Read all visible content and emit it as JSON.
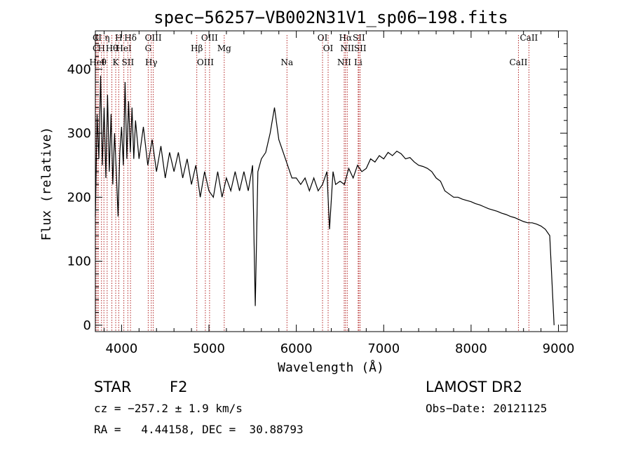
{
  "chart_data": {
    "type": "line",
    "title": "spec−56257−VB002N31V1_sp06−198.fits",
    "xlabel": "Wavelength (Å)",
    "ylabel": "Flux (relative)",
    "xlim": [
      3700,
      9100
    ],
    "ylim": [
      -10,
      460
    ],
    "xticks": [
      4000,
      5000,
      6000,
      7000,
      8000,
      9000
    ],
    "yticks": [
      0,
      100,
      200,
      300,
      400
    ],
    "series": [
      {
        "color": "#000000",
        "points": [
          [
            3700,
            170
          ],
          [
            3720,
            330
          ],
          [
            3740,
            260
          ],
          [
            3760,
            390
          ],
          [
            3780,
            250
          ],
          [
            3800,
            340
          ],
          [
            3820,
            230
          ],
          [
            3840,
            360
          ],
          [
            3860,
            240
          ],
          [
            3880,
            330
          ],
          [
            3900,
            220
          ],
          [
            3920,
            300
          ],
          [
            3940,
            240
          ],
          [
            3960,
            170
          ],
          [
            3980,
            270
          ],
          [
            4000,
            310
          ],
          [
            4020,
            250
          ],
          [
            4040,
            380
          ],
          [
            4060,
            260
          ],
          [
            4080,
            350
          ],
          [
            4100,
            270
          ],
          [
            4120,
            340
          ],
          [
            4140,
            260
          ],
          [
            4160,
            320
          ],
          [
            4200,
            260
          ],
          [
            4250,
            310
          ],
          [
            4300,
            250
          ],
          [
            4350,
            290
          ],
          [
            4400,
            240
          ],
          [
            4450,
            280
          ],
          [
            4500,
            230
          ],
          [
            4550,
            270
          ],
          [
            4600,
            240
          ],
          [
            4650,
            270
          ],
          [
            4700,
            230
          ],
          [
            4750,
            260
          ],
          [
            4800,
            220
          ],
          [
            4850,
            250
          ],
          [
            4900,
            200
          ],
          [
            4950,
            240
          ],
          [
            5000,
            210
          ],
          [
            5050,
            200
          ],
          [
            5100,
            240
          ],
          [
            5150,
            200
          ],
          [
            5200,
            230
          ],
          [
            5250,
            210
          ],
          [
            5300,
            240
          ],
          [
            5350,
            210
          ],
          [
            5400,
            240
          ],
          [
            5450,
            210
          ],
          [
            5500,
            250
          ],
          [
            5530,
            30
          ],
          [
            5560,
            240
          ],
          [
            5600,
            260
          ],
          [
            5650,
            270
          ],
          [
            5700,
            300
          ],
          [
            5750,
            340
          ],
          [
            5800,
            290
          ],
          [
            5850,
            270
          ],
          [
            5900,
            250
          ],
          [
            5950,
            230
          ],
          [
            6000,
            230
          ],
          [
            6050,
            220
          ],
          [
            6100,
            230
          ],
          [
            6150,
            210
          ],
          [
            6200,
            230
          ],
          [
            6250,
            210
          ],
          [
            6300,
            220
          ],
          [
            6350,
            240
          ],
          [
            6380,
            150
          ],
          [
            6420,
            240
          ],
          [
            6450,
            220
          ],
          [
            6500,
            225
          ],
          [
            6550,
            220
          ],
          [
            6600,
            245
          ],
          [
            6650,
            230
          ],
          [
            6700,
            250
          ],
          [
            6750,
            240
          ],
          [
            6800,
            245
          ],
          [
            6850,
            260
          ],
          [
            6900,
            255
          ],
          [
            6950,
            265
          ],
          [
            7000,
            260
          ],
          [
            7050,
            270
          ],
          [
            7100,
            265
          ],
          [
            7150,
            272
          ],
          [
            7200,
            268
          ],
          [
            7250,
            260
          ],
          [
            7300,
            262
          ],
          [
            7350,
            255
          ],
          [
            7400,
            250
          ],
          [
            7450,
            248
          ],
          [
            7500,
            245
          ],
          [
            7550,
            240
          ],
          [
            7600,
            230
          ],
          [
            7650,
            225
          ],
          [
            7700,
            210
          ],
          [
            7750,
            205
          ],
          [
            7800,
            200
          ],
          [
            7850,
            200
          ],
          [
            7900,
            197
          ],
          [
            7950,
            195
          ],
          [
            8000,
            193
          ],
          [
            8050,
            190
          ],
          [
            8100,
            188
          ],
          [
            8150,
            185
          ],
          [
            8200,
            182
          ],
          [
            8250,
            180
          ],
          [
            8300,
            178
          ],
          [
            8350,
            175
          ],
          [
            8400,
            173
          ],
          [
            8450,
            170
          ],
          [
            8500,
            168
          ],
          [
            8550,
            165
          ],
          [
            8600,
            162
          ],
          [
            8650,
            160
          ],
          [
            8700,
            160
          ],
          [
            8750,
            158
          ],
          [
            8800,
            155
          ],
          [
            8850,
            150
          ],
          [
            8900,
            140
          ],
          [
            8950,
            0
          ]
        ]
      }
    ],
    "line_markers": [
      {
        "wl": 3705,
        "label": "C"
      },
      {
        "wl": 3705,
        "label": "C"
      },
      {
        "wl": 3720,
        "label": "HeI"
      },
      {
        "wl": 3735,
        "label": "II"
      },
      {
        "wl": 3770,
        "label": "H"
      },
      {
        "wl": 3798,
        "label": "θ"
      },
      {
        "wl": 3835,
        "label": "η"
      },
      {
        "wl": 3889,
        "label": "Hθ"
      },
      {
        "wl": 3933,
        "label": "K"
      },
      {
        "wl": 3968,
        "label": "H"
      },
      {
        "wl": 4026,
        "label": "HeI"
      },
      {
        "wl": 4072,
        "label": "SII"
      },
      {
        "wl": 4102,
        "label": "Hδ"
      },
      {
        "wl": 4305,
        "label": "G"
      },
      {
        "wl": 4340,
        "label": "Hγ"
      },
      {
        "wl": 4363,
        "label": "OIII"
      },
      {
        "wl": 4861,
        "label": "Hβ"
      },
      {
        "wl": 4959,
        "label": "OIII"
      },
      {
        "wl": 5007,
        "label": "OIII"
      },
      {
        "wl": 5175,
        "label": "Mg"
      },
      {
        "wl": 5893,
        "label": "Na"
      },
      {
        "wl": 6300,
        "label": "OI"
      },
      {
        "wl": 6364,
        "label": "OI"
      },
      {
        "wl": 6548,
        "label": "NII"
      },
      {
        "wl": 6563,
        "label": "Hα"
      },
      {
        "wl": 6583,
        "label": "NII"
      },
      {
        "wl": 6708,
        "label": "Li"
      },
      {
        "wl": 6716,
        "label": "SII"
      },
      {
        "wl": 6731,
        "label": "SII"
      },
      {
        "wl": 8542,
        "label": "CaII"
      },
      {
        "wl": 8662,
        "label": "CaII"
      }
    ]
  },
  "info": {
    "class_label": "STAR",
    "subclass": "F2",
    "survey": "LAMOST DR2",
    "cz": "cz = −257.2 ± 1.9 km/s",
    "obs_date": "Obs−Date: 20121125",
    "radec": "RA =   4.44158, DEC =  30.88793"
  }
}
